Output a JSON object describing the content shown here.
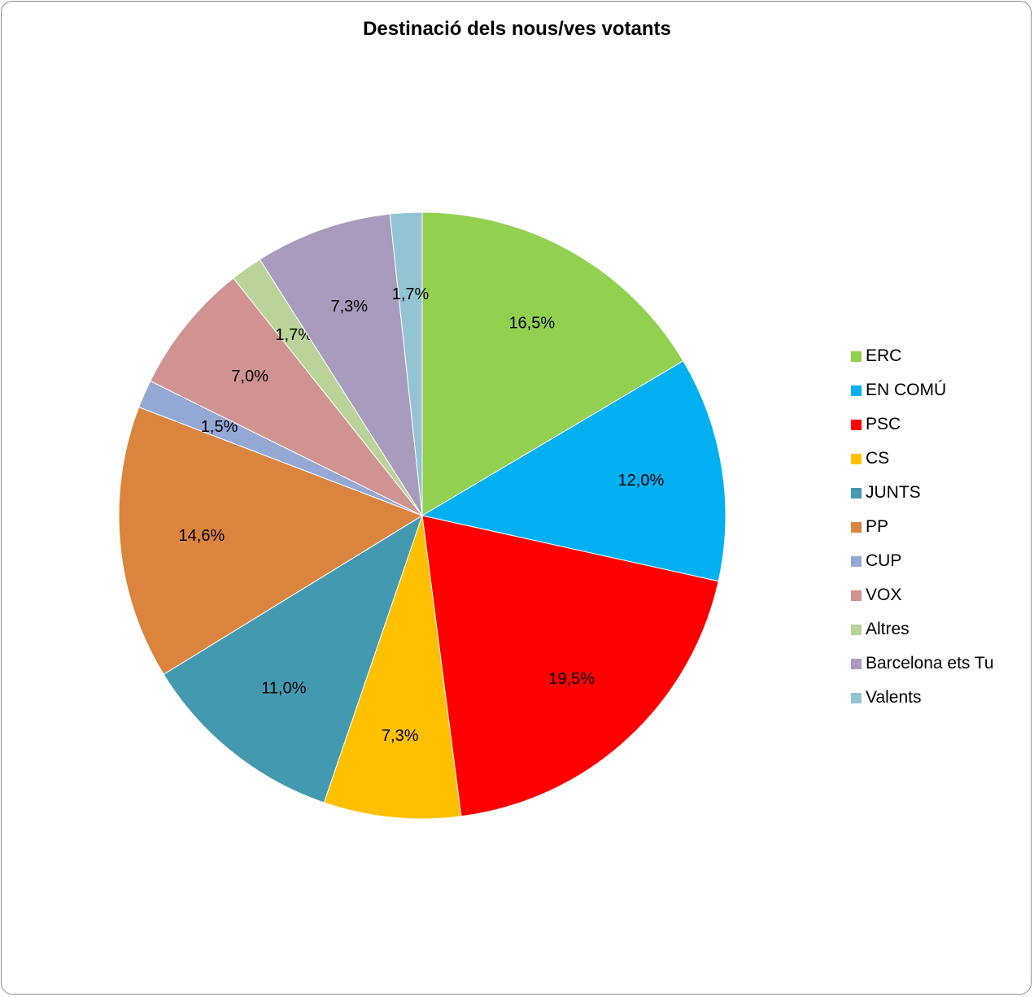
{
  "chart_data": {
    "type": "pie",
    "title": "Destinació dels nous/ves votants",
    "legend_position": "right",
    "slices": [
      {
        "name": "ERC",
        "value": 16.5,
        "label": "16,5%",
        "color": "#92D050"
      },
      {
        "name": "EN COMÚ",
        "value": 12.0,
        "label": "12,0%",
        "color": "#00B0F0"
      },
      {
        "name": "PSC",
        "value": 19.5,
        "label": "19,5%",
        "color": "#FF0000"
      },
      {
        "name": "CS",
        "value": 7.3,
        "label": "7,3%",
        "color": "#FFC000"
      },
      {
        "name": "JUNTS",
        "value": 11.0,
        "label": "11,0%",
        "color": "#4299B0"
      },
      {
        "name": "PP",
        "value": 14.6,
        "label": "14,6%",
        "color": "#DB843D"
      },
      {
        "name": "CUP",
        "value": 1.5,
        "label": "1,5%",
        "color": "#94A8D6"
      },
      {
        "name": "VOX",
        "value": 7.0,
        "label": "7,0%",
        "color": "#D19392"
      },
      {
        "name": "Altres",
        "value": 1.7,
        "label": "1,7%",
        "color": "#B9D399"
      },
      {
        "name": "Barcelona ets Tu",
        "value": 7.3,
        "label": "7,3%",
        "color": "#A99BBD"
      },
      {
        "name": "Valents",
        "value": 1.7,
        "label": "1,7%",
        "color": "#92C4D3"
      }
    ]
  }
}
